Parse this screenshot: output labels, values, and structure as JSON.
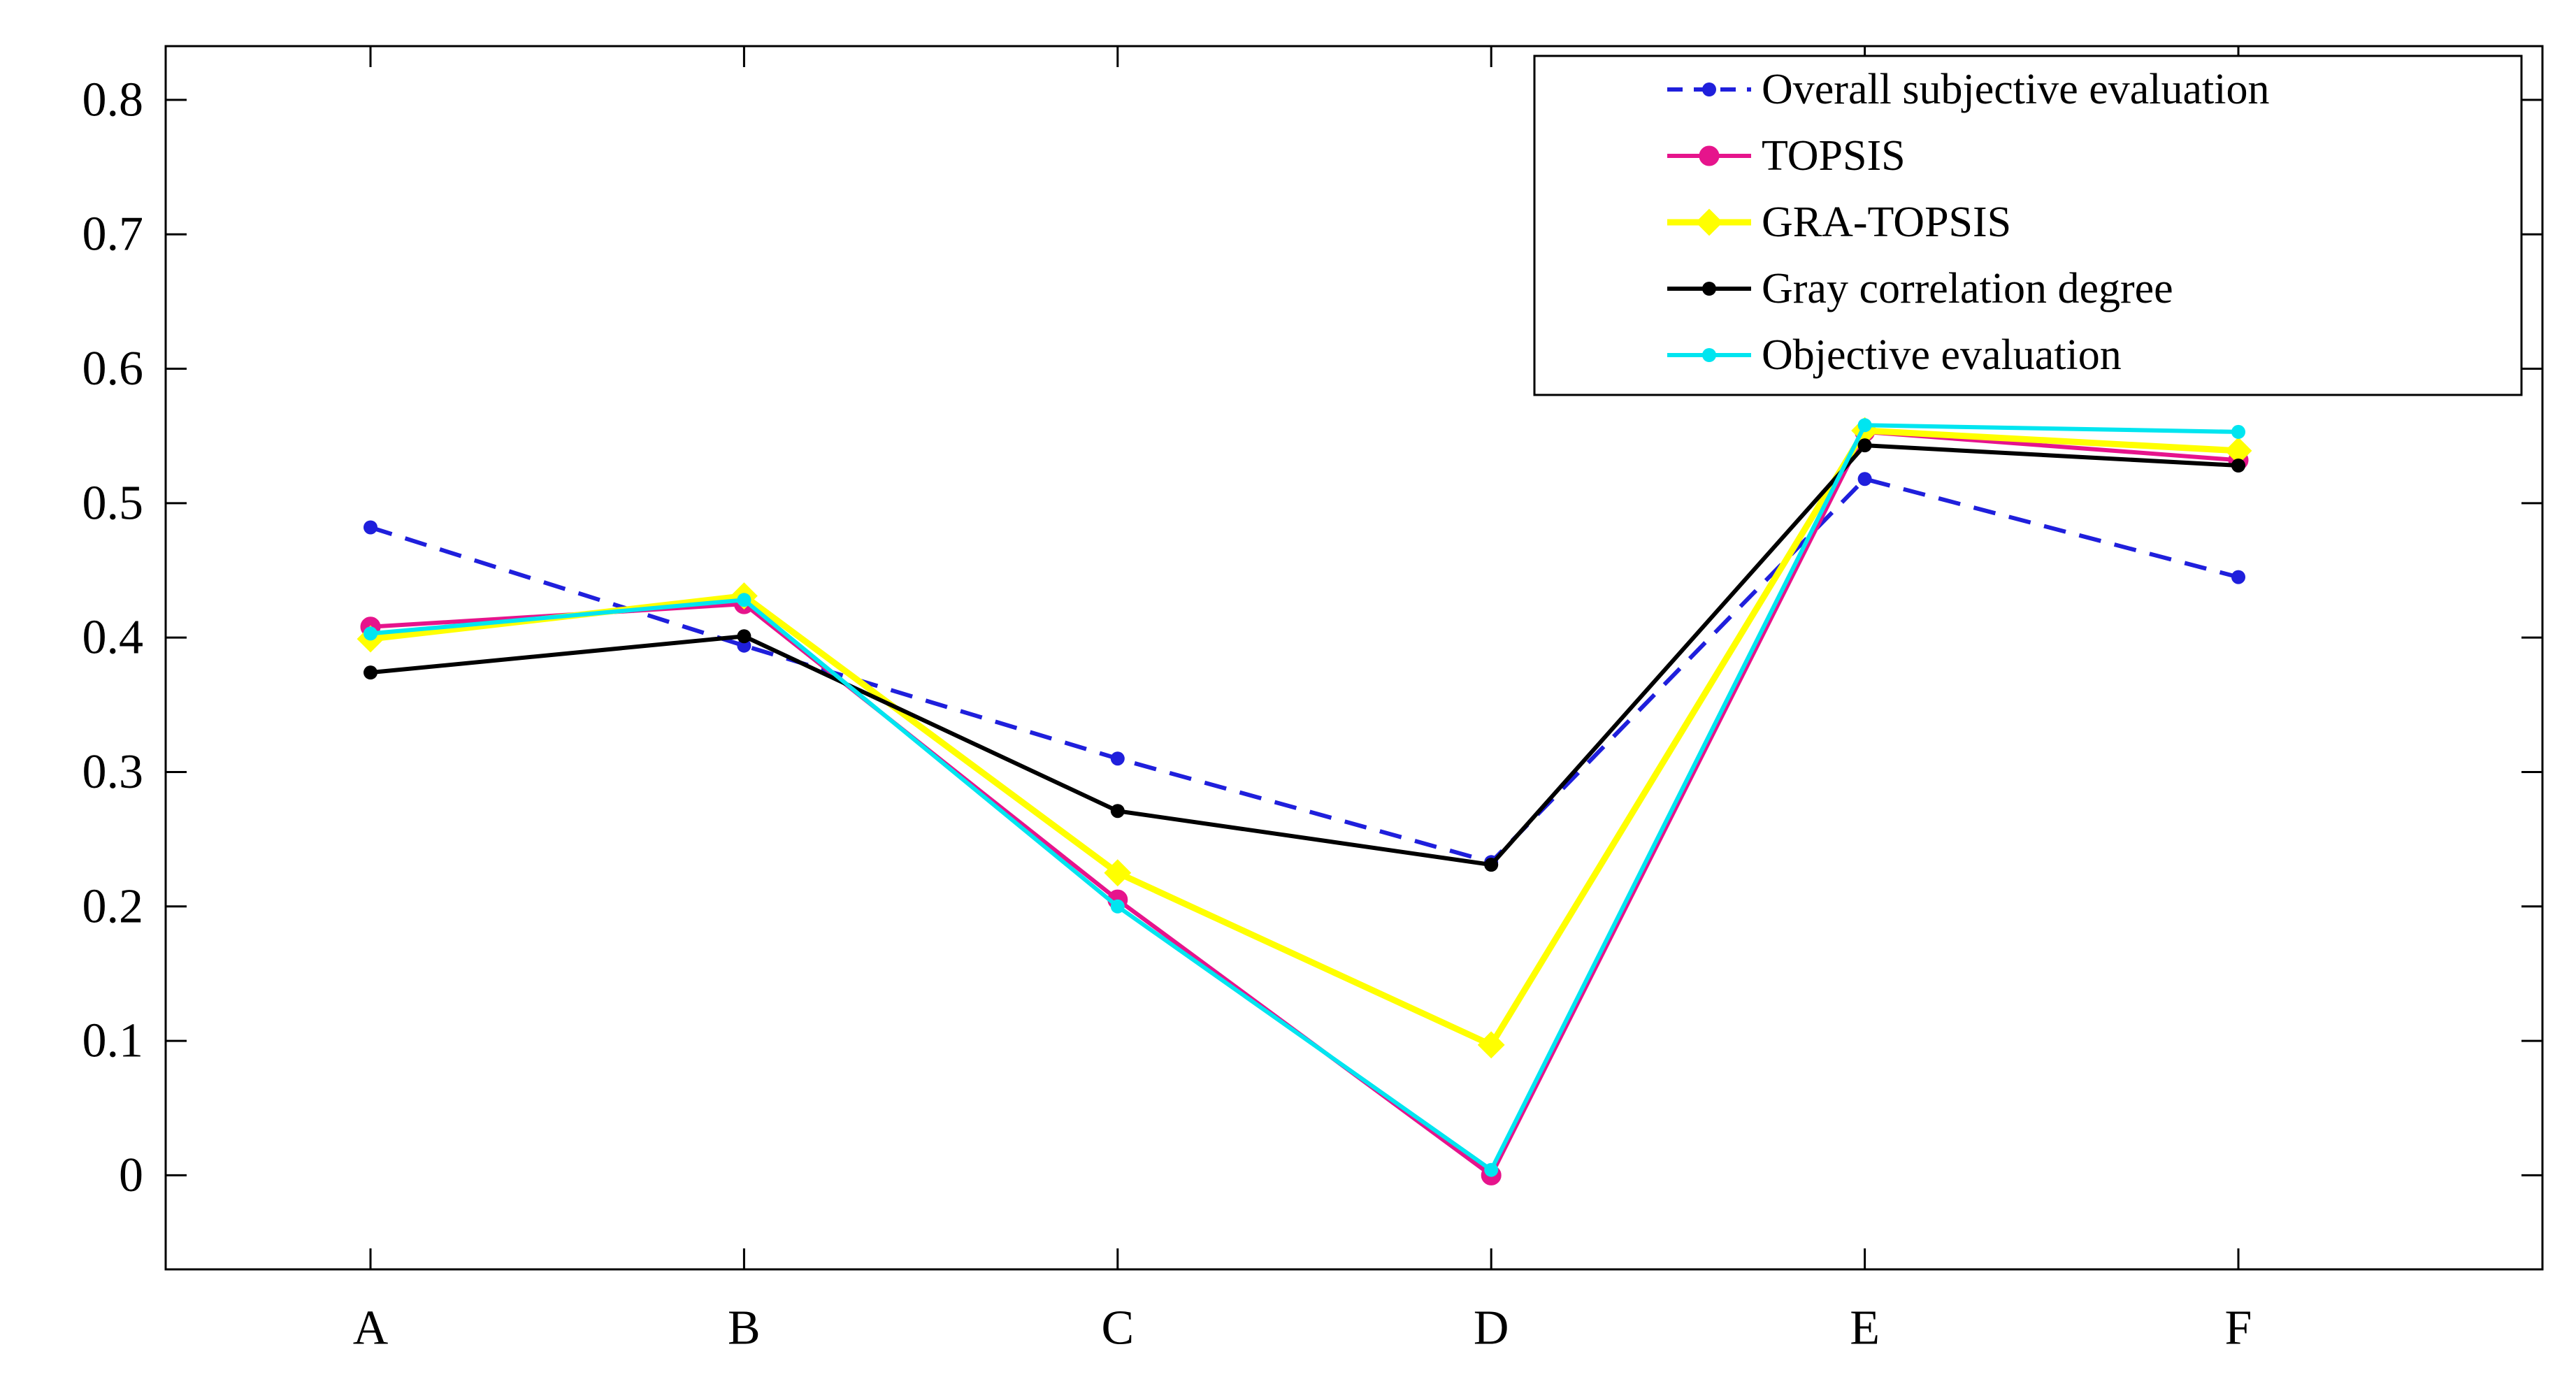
{
  "chart_data": {
    "type": "line",
    "title": "",
    "xlabel": "",
    "ylabel": "",
    "categories": [
      "A",
      "B",
      "C",
      "D",
      "E",
      "F"
    ],
    "ylim": [
      -0.07,
      0.84
    ],
    "yticks": [
      0,
      0.1,
      0.2,
      0.3,
      0.4,
      0.5,
      0.6,
      0.7,
      0.8
    ],
    "ytick_labels": [
      "0",
      "0.1",
      "0.2",
      "0.3",
      "0.4",
      "0.5",
      "0.6",
      "0.7",
      "0.8"
    ],
    "grid": false,
    "legend_position": "top-right",
    "series": [
      {
        "name": "Overall subjective evaluation",
        "values": [
          0.482,
          0.394,
          0.31,
          0.233,
          0.518,
          0.445
        ],
        "color": "#1f1fdc",
        "line_style": "dashed",
        "marker": "dot"
      },
      {
        "name": "TOPSIS",
        "values": [
          0.408,
          0.425,
          0.205,
          0.0,
          0.553,
          0.532
        ],
        "color": "#e6148c",
        "line_style": "solid",
        "marker": "circle"
      },
      {
        "name": "GRA-TOPSIS",
        "values": [
          0.399,
          0.431,
          0.225,
          0.097,
          0.554,
          0.539
        ],
        "color": "#ffff00",
        "line_style": "solid",
        "marker": "diamond"
      },
      {
        "name": "Gray correlation degree",
        "values": [
          0.374,
          0.401,
          0.271,
          0.231,
          0.543,
          0.528
        ],
        "color": "#000000",
        "line_style": "solid",
        "marker": "dot"
      },
      {
        "name": "Objective evaluation",
        "values": [
          0.403,
          0.428,
          0.2,
          0.004,
          0.558,
          0.553
        ],
        "color": "#00e5f0",
        "line_style": "solid",
        "marker": "dot"
      }
    ]
  }
}
